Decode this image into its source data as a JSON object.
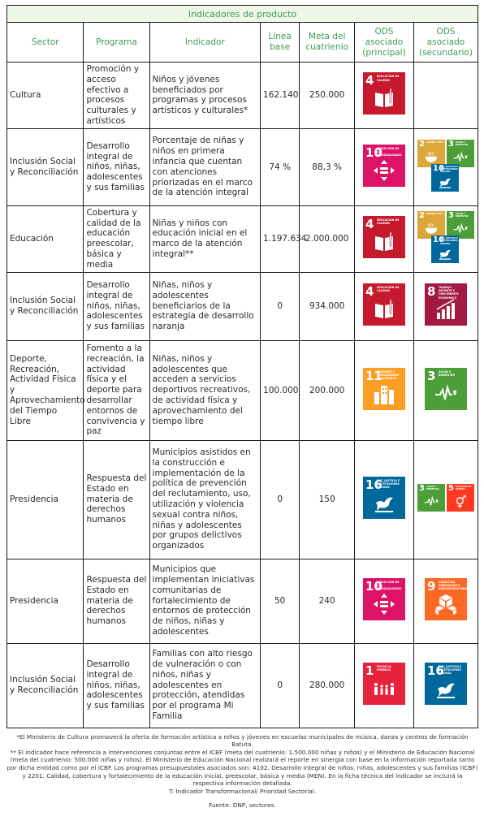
{
  "table": {
    "title": "Indicadores de producto",
    "headers": {
      "sector": "Sector",
      "programa": "Programa",
      "indicador": "Indicador",
      "linea_base": "Línea base",
      "meta": "Meta del cuatrienio",
      "ods_principal": "ODS asociado (principal)",
      "ods_secundario": "ODS asociado (secundario)"
    },
    "rows": [
      {
        "sector": "Cultura",
        "programa": "Promoción y acceso efectivo a procesos culturales y artísticos",
        "indicador": "Niños y jóvenes beneficiados por programas y procesos artísticos y culturales*",
        "linea_base": "162.140",
        "meta": "250.000",
        "ods_principal": [
          4
        ],
        "ods_secundario": []
      },
      {
        "sector": "Inclusión Social y Reconciliación",
        "programa": "Desarrollo integral de niños, niñas, adolescentes y sus familias",
        "indicador": "Porcentaje de niñas y niños en primera infancia que cuentan con atenciones priorizadas en el marco de la atención integral",
        "linea_base": "74 %",
        "meta": "88,3 %",
        "ods_principal": [
          10
        ],
        "ods_secundario": [
          2,
          3,
          16
        ]
      },
      {
        "sector": "Educación",
        "programa": "Cobertura y calidad de la educación preescolar, básica y media",
        "indicador": "Niñas y niños con educación inicial en el marco de la atención integral**",
        "linea_base": "1.197.634",
        "meta": "2.000.000",
        "ods_principal": [
          4
        ],
        "ods_secundario": [
          2,
          3,
          16
        ]
      },
      {
        "sector": "Inclusión Social y Reconciliación",
        "programa": "Desarrollo integral de niños, niñas, adolescentes y sus familias",
        "indicador": "Niñas, niños y adolescentes beneficiarios de la estrategia de desarrollo naranja",
        "linea_base": "0",
        "meta": "934.000",
        "ods_principal": [
          4
        ],
        "ods_secundario": [
          8
        ]
      },
      {
        "sector": "Deporte, Recreación, Actividad Física y Aprovechamiento del Tiempo Libre",
        "programa": "Fomento a la recreación, la actividad física y el deporte para desarrollar entornos de convivencia y paz",
        "indicador": "Niñas, niños y adolescentes que acceden a servicios deportivos recreativos, de actividad física y aprovechamiento del tiempo libre",
        "linea_base": "100.000",
        "meta": "200.000",
        "ods_principal": [
          11
        ],
        "ods_secundario": [
          3
        ]
      },
      {
        "sector": "Presidencia",
        "programa": "Respuesta del Estado en materia de derechos humanos",
        "indicador": "Municipios asistidos en la construcción e implementación de la política de prevención del reclutamiento, uso, utilización y violencia sexual contra niños, niñas y adolescentes por grupos delictivos organizados",
        "linea_base": "0",
        "meta": "150",
        "ods_principal": [
          16
        ],
        "ods_secundario": [
          3,
          5
        ]
      },
      {
        "sector": "Presidencia",
        "programa": "Respuesta del Estado en materia de derechos humanos",
        "indicador": "Municipios que implementan iniciativas comunitarias de fortalecimiento de entornos de protección de niños, niñas y adolescentes",
        "linea_base": "50",
        "meta": "240",
        "ods_principal": [
          10
        ],
        "ods_secundario": [
          9
        ]
      },
      {
        "sector": "Inclusión Social y Reconciliación",
        "programa": "Desarrollo integral de niños, niñas, adolescentes y sus familias",
        "indicador": "Familias con alto riesgo de vulneración o con niños, niñas y adolescentes en protección, atendidas por el programa Mi Familia",
        "linea_base": "0",
        "meta": "280.000",
        "ods_principal": [
          1
        ],
        "ods_secundario": [
          16
        ]
      }
    ]
  },
  "sdg": {
    "1": {
      "label": "Fin de la pobreza",
      "color": "#e5243b",
      "icon": "people-family-icon"
    },
    "2": {
      "label": "Hambre cero",
      "color": "#dda63a",
      "icon": "bowl-icon"
    },
    "3": {
      "label": "Salud y bienestar",
      "color": "#4c9f38",
      "icon": "heartbeat-icon"
    },
    "4": {
      "label": "Educación de calidad",
      "color": "#c5192d",
      "icon": "book-pencil-icon"
    },
    "5": {
      "label": "Igualdad de género",
      "color": "#ff3a21",
      "icon": "gender-icon"
    },
    "8": {
      "label": "Trabajo decente y crecimiento económico",
      "color": "#a21942",
      "icon": "growth-chart-icon"
    },
    "9": {
      "label": "Industria, innovación e infraestructura",
      "color": "#fd6925",
      "icon": "cubes-icon"
    },
    "10": {
      "label": "Reducción de las desigualdades",
      "color": "#dd1367",
      "icon": "equality-icon"
    },
    "11": {
      "label": "Ciudades y comunidades sostenibles",
      "color": "#fd9d24",
      "icon": "buildings-icon"
    },
    "16": {
      "label": "Paz, justicia e instituciones sólidas",
      "color": "#00689d",
      "icon": "dove-gavel-icon"
    }
  },
  "notes": [
    "*El Ministerio de Cultura promoverá la oferta de formación artística a niños y jóvenes en escuelas municipales de música, danza y centros de formación Batuta.",
    "** El indicador hace referencia a intervenciones conjuntas entre el ICBF (meta del cuatrienio: 1.500.000 niñas y niños) y el Ministerio de Educación Nacional (meta del cuatrienio: 500.000 niñas y niños). El Ministerio de Educación Nacional realizará el reporte en sinergia con base en la información reportada tanto por dicha entidad como por el ICBF. Los programas presupuestales asociados son: 4102. Desarrollo integral de niños, niñas, adolescentes y sus familias (ICBF) y 2201. Calidad, cobertura y fortalecimiento de la educación inicial, preescolar, básica y media (MEN). En la ficha técnica del indicador se incluirá la respectiva información detallada.",
    "T: Indicador Transformacional/ Prioridad Sectorial."
  ],
  "source": "Fuente: DNP, sectores."
}
